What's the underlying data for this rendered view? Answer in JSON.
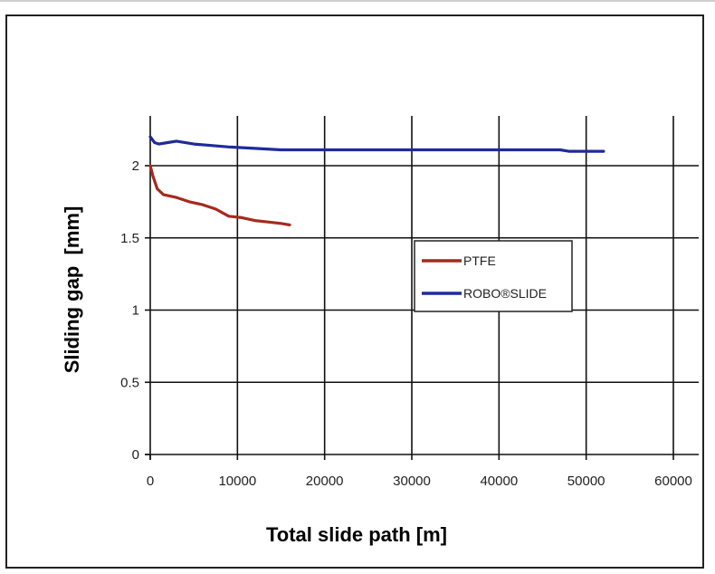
{
  "chart_data": {
    "type": "line",
    "xlabel": "Total slide path [m]",
    "ylabel": "Sliding gap  [mm]",
    "xlim": [
      0,
      60000
    ],
    "ylim": [
      0,
      2.3
    ],
    "xticks": [
      0,
      10000,
      20000,
      30000,
      40000,
      50000,
      60000
    ],
    "yticks": [
      0,
      0.5,
      1,
      1.5,
      2
    ],
    "xtick_labels": [
      "0",
      "10000",
      "20000",
      "30000",
      "40000",
      "50000",
      "60000"
    ],
    "ytick_labels": [
      "0",
      "0.5",
      "1",
      "1.5",
      "2"
    ],
    "grid": true,
    "legend_position": "right",
    "series": [
      {
        "name": "PTFE",
        "color": "#a52a1e",
        "x": [
          0,
          300,
          800,
          1500,
          3000,
          4500,
          6000,
          7500,
          9000,
          10500,
          12000,
          13500,
          15000,
          16000
        ],
        "y": [
          2.0,
          1.93,
          1.84,
          1.8,
          1.78,
          1.75,
          1.73,
          1.7,
          1.65,
          1.64,
          1.62,
          1.61,
          1.6,
          1.59
        ]
      },
      {
        "name": "ROBO®SLIDE",
        "color": "#1f2b9a",
        "x": [
          0,
          500,
          1000,
          2000,
          3000,
          5000,
          7000,
          9000,
          12000,
          15000,
          20000,
          30000,
          40000,
          47000,
          48000,
          52000
        ],
        "y": [
          2.2,
          2.16,
          2.15,
          2.16,
          2.17,
          2.15,
          2.14,
          2.13,
          2.12,
          2.11,
          2.11,
          2.11,
          2.11,
          2.11,
          2.1,
          2.1
        ]
      }
    ]
  }
}
